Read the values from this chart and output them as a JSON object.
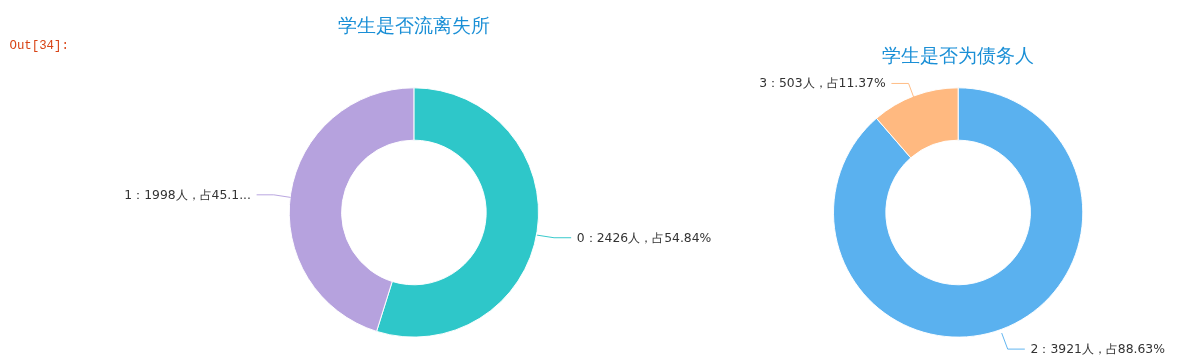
{
  "chart_data": [
    {
      "type": "donut",
      "title": "学生是否流离失所",
      "categories": [
        "0",
        "1"
      ],
      "values": [
        2426,
        1998
      ],
      "colors": [
        "#2ec7c9",
        "#b6a2de"
      ],
      "value_labels": [
        "2426人，占54.84%",
        "1998人，占45.1..."
      ],
      "annotations": [
        "Out[34]:"
      ]
    },
    {
      "type": "donut",
      "title": "学生是否为债务人",
      "categories": [
        "2",
        "3"
      ],
      "values": [
        3921,
        503
      ],
      "colors": [
        "#5ab1ef",
        "#ffb980"
      ],
      "value_labels": [
        "3921人，占88.63%",
        "503人，占11.37%"
      ]
    }
  ]
}
